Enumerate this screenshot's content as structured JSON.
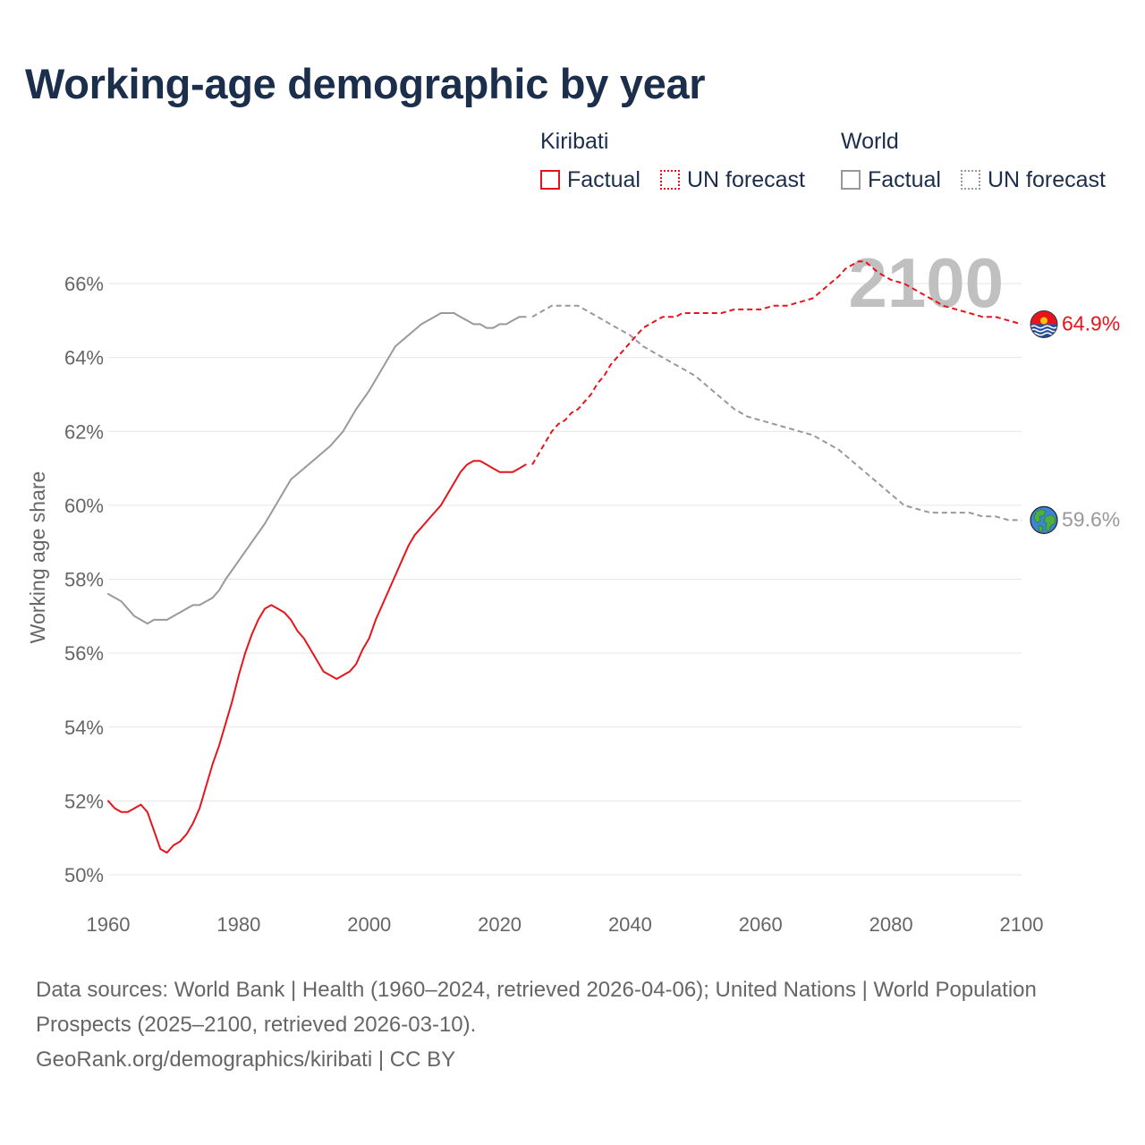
{
  "title": "Working-age demographic by year",
  "colors": {
    "kiribati": "#e8141c",
    "world": "#999999",
    "title": "#1b2e4b"
  },
  "legend": {
    "groups": [
      {
        "title": "Kiribati",
        "factual": "Factual",
        "forecast": "UN forecast"
      },
      {
        "title": "World",
        "factual": "Factual",
        "forecast": "UN forecast"
      }
    ]
  },
  "year_watermark": "2100",
  "footer": {
    "sources": "Data sources: World Bank | Health (1960–2024, retrieved 2026-04-06); United Nations | World Population Prospects (2025–2100, retrieved 2026-03-10).",
    "credit": "GeoRank.org/demographics/kiribati | CC BY"
  },
  "chart_data": {
    "type": "line",
    "title": "Working-age demographic by year",
    "xlabel": "",
    "ylabel": "Working age share",
    "xlim": [
      1960,
      2100
    ],
    "ylim": [
      50,
      66
    ],
    "xticks": [
      1960,
      1980,
      2000,
      2020,
      2040,
      2060,
      2080,
      2100
    ],
    "yticks": [
      50,
      52,
      54,
      56,
      58,
      60,
      62,
      64,
      66
    ],
    "ytick_labels": [
      "50%",
      "52%",
      "54%",
      "56%",
      "58%",
      "60%",
      "62%",
      "64%",
      "66%"
    ],
    "grid": true,
    "series": [
      {
        "name": "Kiribati",
        "type": "Factual",
        "style": "solid",
        "color": "#e8141c",
        "x": [
          1960,
          1961,
          1962,
          1963,
          1964,
          1965,
          1966,
          1967,
          1968,
          1969,
          1970,
          1971,
          1972,
          1973,
          1974,
          1975,
          1976,
          1977,
          1978,
          1979,
          1980,
          1981,
          1982,
          1983,
          1984,
          1985,
          1986,
          1987,
          1988,
          1989,
          1990,
          1991,
          1992,
          1993,
          1994,
          1995,
          1996,
          1997,
          1998,
          1999,
          2000,
          2001,
          2002,
          2003,
          2004,
          2005,
          2006,
          2007,
          2008,
          2009,
          2010,
          2011,
          2012,
          2013,
          2014,
          2015,
          2016,
          2017,
          2018,
          2019,
          2020,
          2021,
          2022,
          2023,
          2024
        ],
        "values": [
          52.0,
          51.8,
          51.7,
          51.7,
          51.8,
          51.9,
          51.7,
          51.2,
          50.7,
          50.6,
          50.8,
          50.9,
          51.1,
          51.4,
          51.8,
          52.4,
          53.0,
          53.5,
          54.1,
          54.7,
          55.4,
          56.0,
          56.5,
          56.9,
          57.2,
          57.3,
          57.2,
          57.1,
          56.9,
          56.6,
          56.4,
          56.1,
          55.8,
          55.5,
          55.4,
          55.3,
          55.4,
          55.5,
          55.7,
          56.1,
          56.4,
          56.9,
          57.3,
          57.7,
          58.1,
          58.5,
          58.9,
          59.2,
          59.4,
          59.6,
          59.8,
          60.0,
          60.3,
          60.6,
          60.9,
          61.1,
          61.2,
          61.2,
          61.1,
          61.0,
          60.9,
          60.9,
          60.9,
          61.0,
          61.1
        ]
      },
      {
        "name": "Kiribati",
        "type": "UN forecast",
        "style": "dashed",
        "color": "#e8141c",
        "x": [
          2025,
          2026,
          2027,
          2028,
          2029,
          2030,
          2031,
          2032,
          2033,
          2034,
          2035,
          2036,
          2037,
          2038,
          2039,
          2040,
          2041,
          2042,
          2043,
          2044,
          2045,
          2046,
          2047,
          2048,
          2049,
          2050,
          2052,
          2054,
          2056,
          2058,
          2060,
          2062,
          2064,
          2066,
          2068,
          2070,
          2072,
          2073,
          2074,
          2075,
          2076,
          2078,
          2080,
          2082,
          2084,
          2086,
          2088,
          2090,
          2092,
          2094,
          2096,
          2098,
          2100
        ],
        "values": [
          61.1,
          61.4,
          61.7,
          62.0,
          62.2,
          62.3,
          62.5,
          62.6,
          62.8,
          63.0,
          63.3,
          63.5,
          63.8,
          64.0,
          64.2,
          64.4,
          64.6,
          64.8,
          64.9,
          65.0,
          65.1,
          65.1,
          65.1,
          65.2,
          65.2,
          65.2,
          65.2,
          65.2,
          65.3,
          65.3,
          65.3,
          65.4,
          65.4,
          65.5,
          65.6,
          65.9,
          66.2,
          66.4,
          66.5,
          66.6,
          66.6,
          66.3,
          66.1,
          66.0,
          65.8,
          65.6,
          65.4,
          65.3,
          65.2,
          65.1,
          65.1,
          65.0,
          64.9
        ]
      },
      {
        "name": "World",
        "type": "Factual",
        "style": "solid",
        "color": "#999999",
        "x": [
          1960,
          1962,
          1964,
          1966,
          1967,
          1968,
          1969,
          1970,
          1972,
          1973,
          1974,
          1976,
          1977,
          1978,
          1980,
          1982,
          1984,
          1985,
          1986,
          1987,
          1988,
          1990,
          1992,
          1994,
          1996,
          1997,
          1998,
          2000,
          2002,
          2004,
          2006,
          2008,
          2010,
          2011,
          2012,
          2013,
          2014,
          2015,
          2016,
          2017,
          2018,
          2019,
          2020,
          2021,
          2022,
          2023,
          2024
        ],
        "values": [
          57.6,
          57.4,
          57.0,
          56.8,
          56.9,
          56.9,
          56.9,
          57.0,
          57.2,
          57.3,
          57.3,
          57.5,
          57.7,
          58.0,
          58.5,
          59.0,
          59.5,
          59.8,
          60.1,
          60.4,
          60.7,
          61.0,
          61.3,
          61.6,
          62.0,
          62.3,
          62.6,
          63.1,
          63.7,
          64.3,
          64.6,
          64.9,
          65.1,
          65.2,
          65.2,
          65.2,
          65.1,
          65.0,
          64.9,
          64.9,
          64.8,
          64.8,
          64.9,
          64.9,
          65.0,
          65.1,
          65.1
        ]
      },
      {
        "name": "World",
        "type": "UN forecast",
        "style": "dashed",
        "color": "#999999",
        "x": [
          2025,
          2026,
          2027,
          2028,
          2030,
          2032,
          2033,
          2034,
          2036,
          2038,
          2040,
          2042,
          2044,
          2046,
          2048,
          2050,
          2052,
          2054,
          2056,
          2058,
          2060,
          2062,
          2064,
          2066,
          2068,
          2070,
          2072,
          2074,
          2076,
          2078,
          2080,
          2082,
          2084,
          2086,
          2088,
          2090,
          2092,
          2094,
          2096,
          2098,
          2100
        ],
        "values": [
          65.1,
          65.2,
          65.3,
          65.4,
          65.4,
          65.4,
          65.3,
          65.2,
          65.0,
          64.8,
          64.6,
          64.3,
          64.1,
          63.9,
          63.7,
          63.5,
          63.2,
          62.9,
          62.6,
          62.4,
          62.3,
          62.2,
          62.1,
          62.0,
          61.9,
          61.7,
          61.5,
          61.2,
          60.9,
          60.6,
          60.3,
          60.0,
          59.9,
          59.8,
          59.8,
          59.8,
          59.8,
          59.7,
          59.7,
          59.6,
          59.6
        ]
      }
    ],
    "end_labels": [
      {
        "series": "Kiribati",
        "label": "64.9%",
        "value": 64.9
      },
      {
        "series": "World",
        "label": "59.6%",
        "value": 59.6
      }
    ]
  }
}
